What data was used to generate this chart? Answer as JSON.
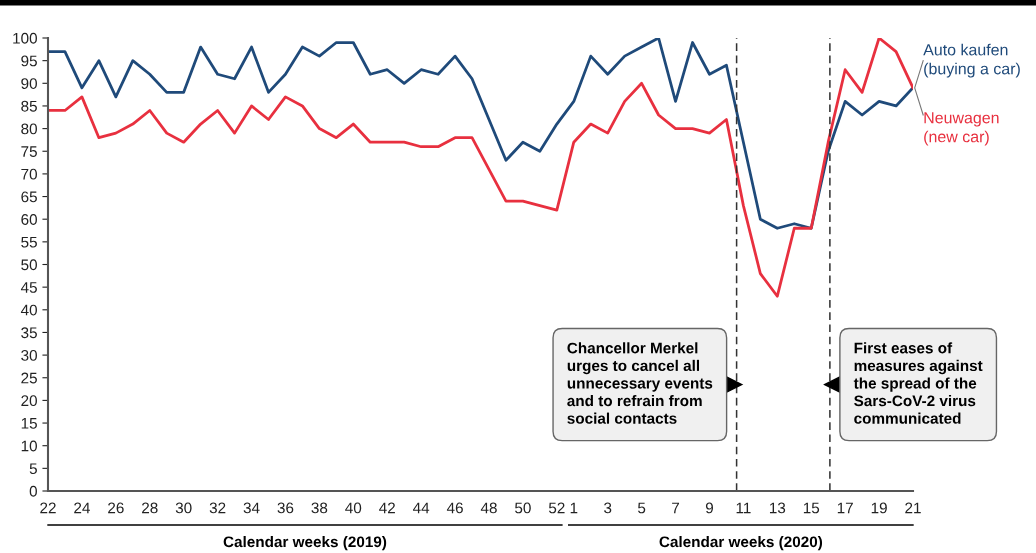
{
  "chart_data": {
    "type": "line",
    "categories": [
      "22",
      null,
      "24",
      null,
      "26",
      null,
      "28",
      null,
      "30",
      null,
      "32",
      null,
      "34",
      null,
      "36",
      null,
      "38",
      null,
      "40",
      null,
      "42",
      null,
      "44",
      null,
      "46",
      null,
      "48",
      null,
      "50",
      null,
      "52",
      "1",
      null,
      "3",
      null,
      "5",
      null,
      "7",
      null,
      "9",
      null,
      "11",
      null,
      "13",
      null,
      "15",
      null,
      "17",
      null,
      "19",
      null,
      "21"
    ],
    "series": [
      {
        "name": "Auto kaufen\n(buying a car)",
        "color": "#1f4a7a",
        "values": [
          97,
          97,
          89,
          95,
          87,
          95,
          92,
          88,
          88,
          98,
          92,
          91,
          98,
          88,
          92,
          98,
          96,
          99,
          99,
          92,
          93,
          90,
          93,
          92,
          96,
          91,
          82,
          73,
          77,
          75,
          81,
          86,
          96,
          92,
          96,
          98,
          100,
          86,
          99,
          92,
          94,
          77,
          60,
          58,
          59,
          58,
          75,
          86,
          83,
          86,
          85,
          89
        ]
      },
      {
        "name": "Neuwagen\n(new car)",
        "color": "#e8303f",
        "values": [
          84,
          84,
          87,
          78,
          79,
          81,
          84,
          79,
          77,
          81,
          84,
          79,
          85,
          82,
          87,
          85,
          80,
          78,
          81,
          77,
          77,
          77,
          76,
          76,
          78,
          78,
          71,
          64,
          64,
          63,
          62,
          77,
          81,
          79,
          86,
          90,
          83,
          80,
          80,
          79,
          82,
          63,
          48,
          43,
          58,
          58,
          77,
          93,
          88,
          100,
          97,
          89
        ]
      }
    ],
    "ylim": [
      0,
      100
    ],
    "yticks": [
      0,
      5,
      10,
      15,
      20,
      25,
      30,
      35,
      40,
      45,
      50,
      55,
      60,
      65,
      70,
      75,
      80,
      85,
      90,
      95,
      100
    ],
    "annotations": [
      "Calendar weeks (2019)",
      "Calendar weeks (2020)",
      "Chancellor Merkel\nurges to cancel all\nunnecessary events\nand to refrain from\nsocial contacts",
      "First eases of\nmeasures against\nthe spread of the\nSars-CoV-2 virus\ncommunicated"
    ],
    "marker": "none",
    "line_style": "solid"
  }
}
